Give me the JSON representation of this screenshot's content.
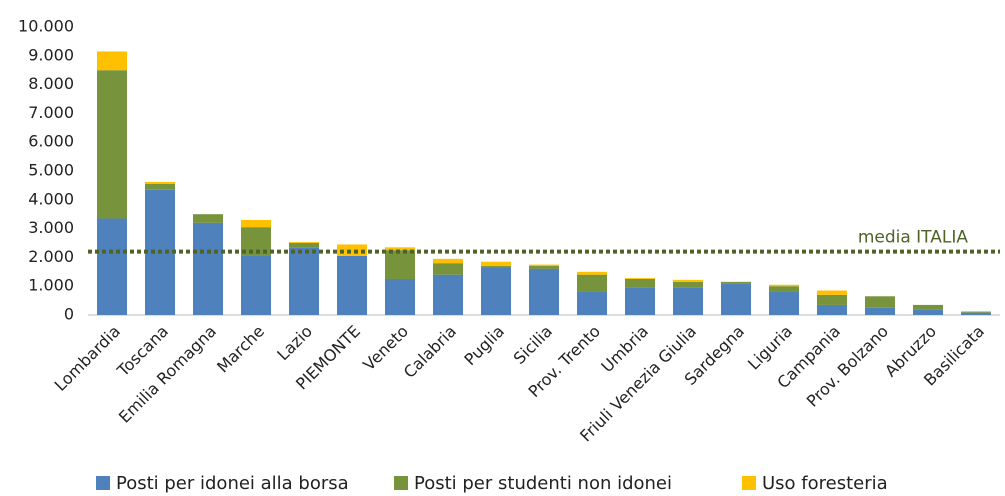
{
  "chart_data": {
    "type": "stacked-bar",
    "categories": [
      "Lombardia",
      "Toscana",
      "Emilia Romagna",
      "Marche",
      "Lazio",
      "PIEMONTE",
      "Veneto",
      "Calabria",
      "Puglia",
      "Sicilia",
      "Prov. Trento",
      "Umbria",
      "Friuli Venezia Giulia",
      "Sardegna",
      "Liguria",
      "Campania",
      "Prov. Bolzano",
      "Abruzzo",
      "Basilicata"
    ],
    "series": [
      {
        "name": "Posti per idonei alla borsa",
        "color": "#4f81bd",
        "values": [
          3350,
          4350,
          3200,
          2050,
          2350,
          2050,
          1250,
          1400,
          1650,
          1600,
          800,
          950,
          950,
          1100,
          800,
          350,
          250,
          200,
          80
        ]
      },
      {
        "name": "Posti per studenti non idonei",
        "color": "#77933c",
        "values": [
          5150,
          200,
          300,
          1000,
          150,
          0,
          1000,
          400,
          50,
          100,
          600,
          300,
          200,
          50,
          200,
          350,
          400,
          150,
          40
        ]
      },
      {
        "name": "Uso foresteria",
        "color": "#ffc000",
        "values": [
          650,
          70,
          0,
          250,
          30,
          400,
          100,
          150,
          150,
          50,
          100,
          30,
          70,
          0,
          50,
          150,
          0,
          0,
          0
        ]
      }
    ],
    "ylim": [
      0,
      10000
    ],
    "yticks": [
      0,
      {
        "value": 1000,
        "label": "1.000"
      },
      {
        "value": 2000,
        "label": "2.000"
      },
      {
        "value": 3000,
        "label": "3.000"
      },
      {
        "value": 4000,
        "label": "4.000"
      },
      {
        "value": 5000,
        "label": "5.000"
      },
      {
        "value": 6000,
        "label": "6.000"
      },
      {
        "value": 7000,
        "label": "7.000"
      },
      {
        "value": 8000,
        "label": "8.000"
      },
      {
        "value": 9000,
        "label": "9.000"
      },
      {
        "value": 10000,
        "label": "10.000"
      }
    ],
    "average": {
      "value": 2200,
      "label": "media ITALIA",
      "color": "#4f6228"
    },
    "legend": "bottom"
  }
}
